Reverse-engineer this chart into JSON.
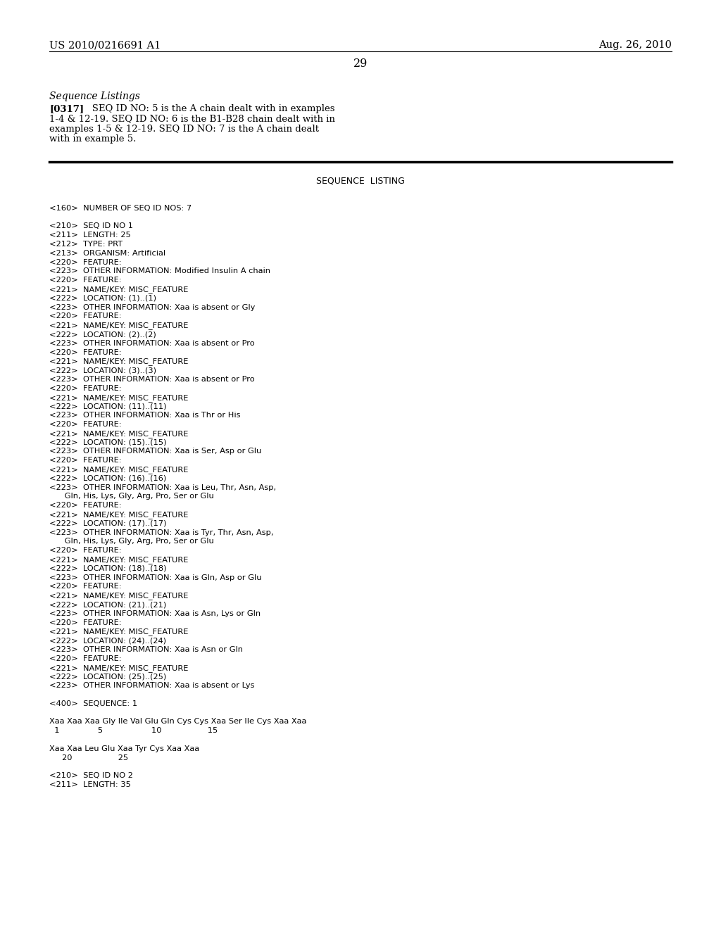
{
  "bg_color": "#ffffff",
  "header_left": "US 2010/0216691 A1",
  "header_right": "Aug. 26, 2010",
  "page_number": "29",
  "section_title": "Sequence Listings",
  "paragraph_bold": "[0317]",
  "paragraph_text_line1": "   SEQ ID NO: 5 is the A chain dealt with in examples",
  "paragraph_text_line2": "1-4 & 12-19. SEQ ID NO: 6 is the B1-B28 chain dealt with in",
  "paragraph_text_line3": "examples 1-5 & 12-19. SEQ ID NO: 7 is the A chain dealt",
  "paragraph_text_line4": "with in example 5.",
  "seq_listing_title": "SEQUENCE  LISTING",
  "mono_lines": [
    "",
    "<160>  NUMBER OF SEQ ID NOS: 7",
    "",
    "<210>  SEQ ID NO 1",
    "<211>  LENGTH: 25",
    "<212>  TYPE: PRT",
    "<213>  ORGANISM: Artificial",
    "<220>  FEATURE:",
    "<223>  OTHER INFORMATION: Modified Insulin A chain",
    "<220>  FEATURE:",
    "<221>  NAME/KEY: MISC_FEATURE",
    "<222>  LOCATION: (1)..(1)",
    "<223>  OTHER INFORMATION: Xaa is absent or Gly",
    "<220>  FEATURE:",
    "<221>  NAME/KEY: MISC_FEATURE",
    "<222>  LOCATION: (2)..(2)",
    "<223>  OTHER INFORMATION: Xaa is absent or Pro",
    "<220>  FEATURE:",
    "<221>  NAME/KEY: MISC_FEATURE",
    "<222>  LOCATION: (3)..(3)",
    "<223>  OTHER INFORMATION: Xaa is absent or Pro",
    "<220>  FEATURE:",
    "<221>  NAME/KEY: MISC_FEATURE",
    "<222>  LOCATION: (11)..(11)",
    "<223>  OTHER INFORMATION: Xaa is Thr or His",
    "<220>  FEATURE:",
    "<221>  NAME/KEY: MISC_FEATURE",
    "<222>  LOCATION: (15)..(15)",
    "<223>  OTHER INFORMATION: Xaa is Ser, Asp or Glu",
    "<220>  FEATURE:",
    "<221>  NAME/KEY: MISC_FEATURE",
    "<222>  LOCATION: (16)..(16)",
    "<223>  OTHER INFORMATION: Xaa is Leu, Thr, Asn, Asp,",
    "      Gln, His, Lys, Gly, Arg, Pro, Ser or Glu",
    "<220>  FEATURE:",
    "<221>  NAME/KEY: MISC_FEATURE",
    "<222>  LOCATION: (17)..(17)",
    "<223>  OTHER INFORMATION: Xaa is Tyr, Thr, Asn, Asp,",
    "      Gln, His, Lys, Gly, Arg, Pro, Ser or Glu",
    "<220>  FEATURE:",
    "<221>  NAME/KEY: MISC_FEATURE",
    "<222>  LOCATION: (18)..(18)",
    "<223>  OTHER INFORMATION: Xaa is Gln, Asp or Glu",
    "<220>  FEATURE:",
    "<221>  NAME/KEY: MISC_FEATURE",
    "<222>  LOCATION: (21)..(21)",
    "<223>  OTHER INFORMATION: Xaa is Asn, Lys or Gln",
    "<220>  FEATURE:",
    "<221>  NAME/KEY: MISC_FEATURE",
    "<222>  LOCATION: (24)..(24)",
    "<223>  OTHER INFORMATION: Xaa is Asn or Gln",
    "<220>  FEATURE:",
    "<221>  NAME/KEY: MISC_FEATURE",
    "<222>  LOCATION: (25)..(25)",
    "<223>  OTHER INFORMATION: Xaa is absent or Lys",
    "",
    "<400>  SEQUENCE: 1",
    "",
    "Xaa Xaa Xaa Gly Ile Val Glu Gln Cys Cys Xaa Ser Ile Cys Xaa Xaa",
    "  1               5                   10                  15",
    "",
    "Xaa Xaa Leu Glu Xaa Tyr Cys Xaa Xaa",
    "     20                  25",
    "",
    "<210>  SEQ ID NO 2",
    "<211>  LENGTH: 35"
  ]
}
